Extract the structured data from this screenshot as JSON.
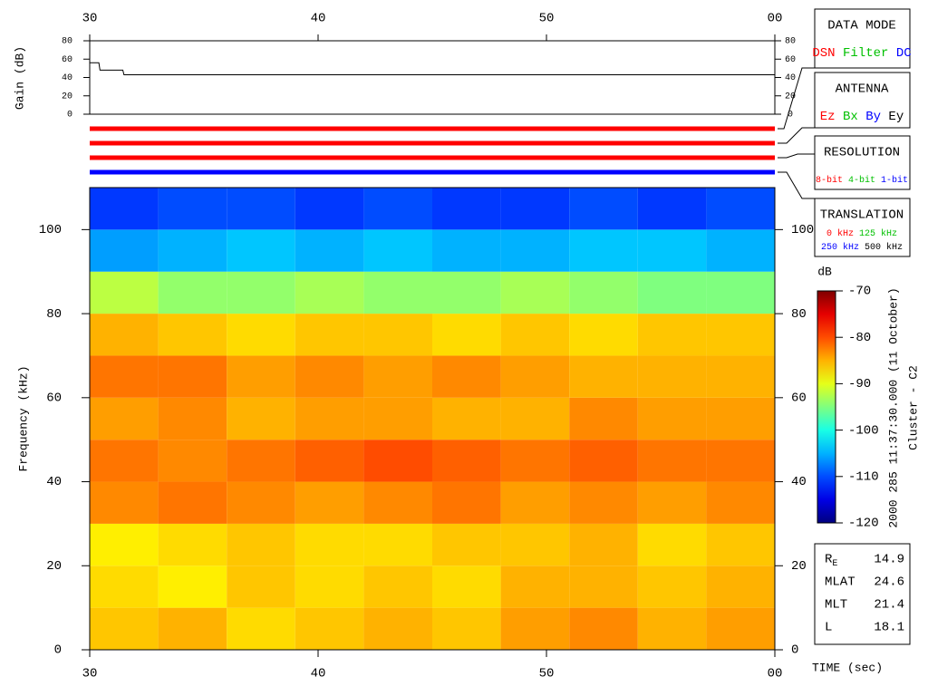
{
  "chart_data": [
    {
      "type": "line",
      "ylabel": "Gain (dB)",
      "xlim": [
        30,
        60
      ],
      "xticks": [
        30,
        40,
        50,
        {
          "value": 60,
          "label": "00"
        }
      ],
      "ylim": [
        0,
        80
      ],
      "yticks": [
        0,
        20,
        40,
        60,
        80
      ],
      "series": [
        {
          "color": "#000000",
          "x": [
            30,
            30.4,
            30.45,
            31.45,
            31.5,
            60
          ],
          "values": [
            56,
            56,
            48,
            48,
            43,
            43
          ]
        }
      ]
    },
    {
      "type": "heatmap",
      "ylabel": "Frequency (kHz)",
      "xlabel": "TIME (sec)",
      "xlim": [
        30,
        60
      ],
      "xticks": [
        30,
        40,
        50,
        {
          "value": 60,
          "label": "00"
        }
      ],
      "ylim": [
        0,
        110
      ],
      "yticks": [
        0,
        20,
        40,
        60,
        80,
        100
      ],
      "xbins": [
        30,
        33,
        36,
        39,
        42,
        45,
        48,
        51,
        54,
        57,
        60
      ],
      "ybins": [
        0,
        10,
        20,
        30,
        40,
        50,
        60,
        70,
        80,
        90,
        100,
        110
      ],
      "values": [
        [
          -86,
          -85,
          -87,
          -86,
          -85,
          -86,
          -84,
          -83,
          -85,
          -84
        ],
        [
          -87,
          -88,
          -86,
          -87,
          -86,
          -87,
          -85,
          -85,
          -86,
          -85
        ],
        [
          -88,
          -87,
          -86,
          -87,
          -87,
          -86,
          -86,
          -85,
          -87,
          -86
        ],
        [
          -83,
          -82,
          -83,
          -84,
          -83,
          -82,
          -84,
          -83,
          -84,
          -83
        ],
        [
          -82,
          -83,
          -82,
          -81,
          -80,
          -81,
          -82,
          -81,
          -82,
          -82
        ],
        [
          -84,
          -83,
          -85,
          -84,
          -84,
          -85,
          -85,
          -83,
          -84,
          -84
        ],
        [
          -82,
          -82,
          -84,
          -83,
          -84,
          -83,
          -84,
          -85,
          -85,
          -85
        ],
        [
          -85,
          -86,
          -87,
          -86,
          -86,
          -87,
          -86,
          -87,
          -86,
          -86
        ],
        [
          -92,
          -94,
          -94,
          -93,
          -94,
          -94,
          -93,
          -94,
          -95,
          -95
        ],
        [
          -106,
          -105,
          -104,
          -105,
          -104,
          -105,
          -105,
          -104,
          -104,
          -105
        ],
        [
          -111,
          -110,
          -110,
          -111,
          -110,
          -111,
          -111,
          -110,
          -111,
          -110
        ]
      ],
      "zlabel": "dB",
      "zlim": [
        -120,
        -70
      ],
      "zticks": [
        -120,
        -110,
        -100,
        -90,
        -80,
        -70
      ],
      "colormap": "jet",
      "caption": "2000 285 11:37:30.000 (11 October)",
      "spacecraft": "Cluster - C2"
    }
  ],
  "panels": {
    "data_mode": {
      "title": "DATA MODE",
      "options": [
        {
          "text": "DSN",
          "color": "#ff0000"
        },
        {
          "text": "Filter",
          "color": "#00c000"
        },
        {
          "text": "DC",
          "color": "#0000ff"
        }
      ]
    },
    "antenna": {
      "title": "ANTENNA",
      "options": [
        {
          "text": "Ez",
          "color": "#ff0000"
        },
        {
          "text": "Bx",
          "color": "#00c000"
        },
        {
          "text": "By",
          "color": "#0000ff"
        },
        {
          "text": "Ey",
          "color": "#000000"
        }
      ]
    },
    "resolution": {
      "title": "RESOLUTION",
      "options": [
        {
          "text": "8-bit",
          "color": "#ff0000"
        },
        {
          "text": "4-bit",
          "color": "#00c000"
        },
        {
          "text": "1-bit",
          "color": "#0000ff"
        }
      ]
    },
    "translation": {
      "title": "TRANSLATION",
      "options": [
        {
          "text": "0 kHz",
          "color": "#ff0000"
        },
        {
          "text": "125 kHz",
          "color": "#00c000"
        },
        {
          "text": "250 kHz",
          "color": "#0000ff"
        },
        {
          "text": "500 kHz",
          "color": "#000000"
        }
      ]
    },
    "position": [
      {
        "label": "R",
        "sub": "E",
        "value": "14.9"
      },
      {
        "label": "MLAT",
        "value": "24.6"
      },
      {
        "label": "MLT",
        "value": "21.4"
      },
      {
        "label": "L",
        "value": "18.1"
      }
    ]
  }
}
